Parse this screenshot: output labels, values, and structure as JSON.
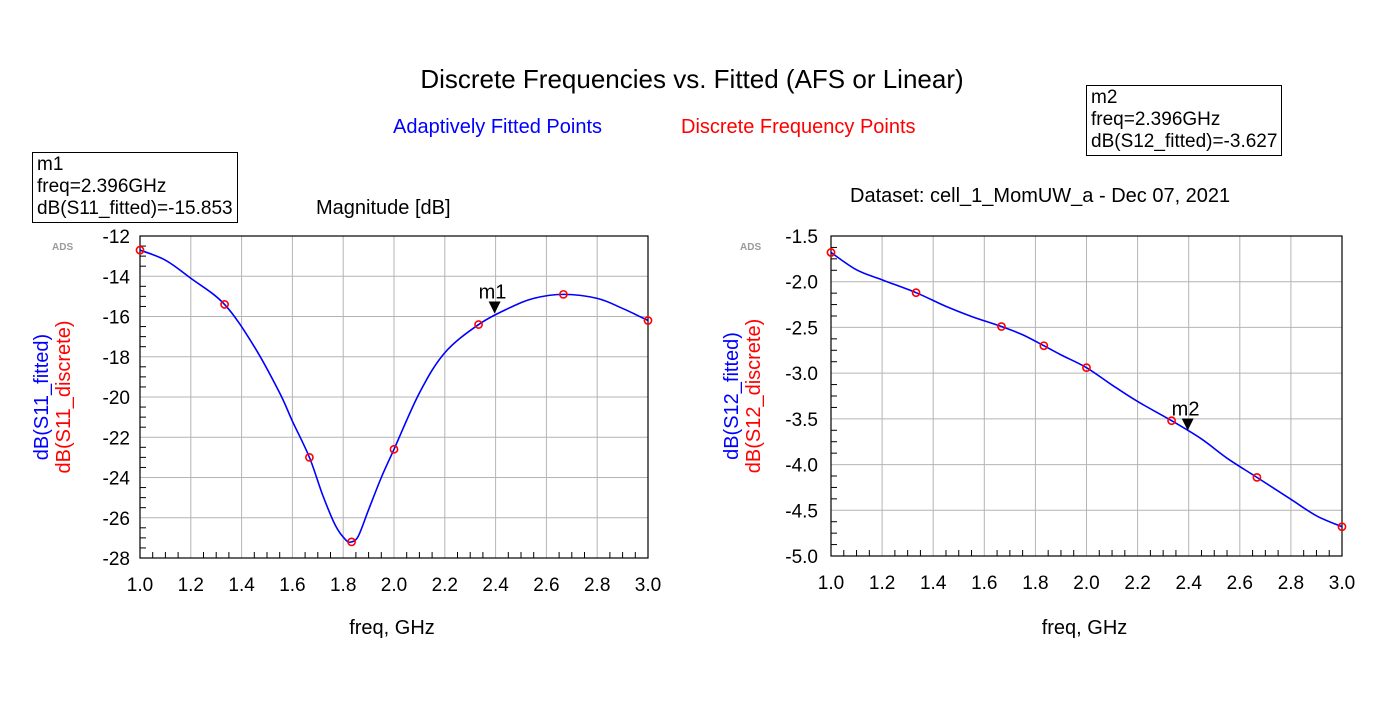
{
  "title": "Discrete Frequencies vs. Fitted (AFS or Linear)",
  "legend": [
    {
      "label": "Adaptively Fitted Points",
      "color": "#0000ff"
    },
    {
      "label": "Discrete Frequency Points",
      "color": "#ff0000"
    }
  ],
  "colors": {
    "fitted": "#0000ff",
    "discrete": "#ff0000",
    "grid": "#b4b4b4"
  },
  "chart_data": [
    {
      "type": "line",
      "title": "Magnitude [dB]",
      "watermark": "ADS",
      "xlabel": "freq, GHz",
      "ylabel_fitted": "dB(S11_fitted)",
      "ylabel_discrete": "dB(S11_discrete)",
      "xlim": [
        1.0,
        3.0
      ],
      "ylim": [
        -28,
        -12
      ],
      "xticks": [
        1.0,
        1.2,
        1.4,
        1.6,
        1.8,
        2.0,
        2.2,
        2.4,
        2.6,
        2.8,
        3.0
      ],
      "xtick_labels": [
        "1.0",
        "1.2",
        "1.4",
        "1.6",
        "1.8",
        "2.0",
        "2.2",
        "2.4",
        "2.6",
        "2.8",
        "3.0"
      ],
      "yticks": [
        -12,
        -14,
        -16,
        -18,
        -20,
        -22,
        -24,
        -26,
        -28
      ],
      "ytick_labels": [
        "-12",
        "-14",
        "-16",
        "-18",
        "-20",
        "-22",
        "-24",
        "-26",
        "-28"
      ],
      "series": [
        {
          "name": "dB(S11_fitted)",
          "x": [
            1.0,
            1.1,
            1.2,
            1.333,
            1.45,
            1.55,
            1.6,
            1.667,
            1.72,
            1.77,
            1.81,
            1.833,
            1.86,
            1.9,
            1.95,
            2.0,
            2.1,
            2.2,
            2.333,
            2.45,
            2.55,
            2.667,
            2.8,
            2.9,
            3.0
          ],
          "y": [
            -12.7,
            -13.2,
            -14.1,
            -15.4,
            -17.5,
            -19.8,
            -21.2,
            -23.0,
            -24.9,
            -26.4,
            -27.1,
            -27.2,
            -26.9,
            -25.6,
            -24.0,
            -22.6,
            -19.8,
            -17.8,
            -16.4,
            -15.6,
            -15.1,
            -14.9,
            -15.1,
            -15.6,
            -16.2
          ]
        },
        {
          "name": "dB(S11_discrete)",
          "x": [
            1.0,
            1.333,
            1.667,
            1.833,
            2.0,
            2.333,
            2.667,
            3.0
          ],
          "y": [
            -12.7,
            -15.4,
            -23.0,
            -27.2,
            -22.6,
            -16.4,
            -14.9,
            -16.2
          ]
        }
      ],
      "marker": {
        "name": "m1",
        "freq": 2.396,
        "value": -15.853,
        "lines": [
          "m1",
          "freq=2.396GHz",
          "dB(S11_fitted)=-15.853"
        ]
      }
    },
    {
      "type": "line",
      "title": "Dataset: cell_1_MomUW_a - Dec 07, 2021",
      "watermark": "ADS",
      "xlabel": "freq, GHz",
      "ylabel_fitted": "dB(S12_fitted)",
      "ylabel_discrete": "dB(S12_discrete)",
      "xlim": [
        1.0,
        3.0
      ],
      "ylim": [
        -5.0,
        -1.5
      ],
      "xticks": [
        1.0,
        1.2,
        1.4,
        1.6,
        1.8,
        2.0,
        2.2,
        2.4,
        2.6,
        2.8,
        3.0
      ],
      "xtick_labels": [
        "1.0",
        "1.2",
        "1.4",
        "1.6",
        "1.8",
        "2.0",
        "2.2",
        "2.4",
        "2.6",
        "2.8",
        "3.0"
      ],
      "yticks": [
        -1.5,
        -2.0,
        -2.5,
        -3.0,
        -3.5,
        -4.0,
        -4.5,
        -5.0
      ],
      "ytick_labels": [
        "-1.5",
        "-2.0",
        "-2.5",
        "-3.0",
        "-3.5",
        "-4.0",
        "-4.5",
        "-5.0"
      ],
      "series": [
        {
          "name": "dB(S12_fitted)",
          "x": [
            1.0,
            1.1,
            1.2,
            1.333,
            1.45,
            1.55,
            1.667,
            1.75,
            1.833,
            1.9,
            2.0,
            2.1,
            2.2,
            2.333,
            2.45,
            2.55,
            2.667,
            2.8,
            2.9,
            3.0
          ],
          "y": [
            -1.68,
            -1.87,
            -1.98,
            -2.12,
            -2.27,
            -2.38,
            -2.49,
            -2.58,
            -2.7,
            -2.8,
            -2.94,
            -3.13,
            -3.31,
            -3.52,
            -3.72,
            -3.93,
            -4.14,
            -4.38,
            -4.56,
            -4.68
          ]
        },
        {
          "name": "dB(S12_discrete)",
          "x": [
            1.0,
            1.333,
            1.667,
            1.833,
            2.0,
            2.333,
            2.667,
            3.0
          ],
          "y": [
            -1.68,
            -2.12,
            -2.49,
            -2.7,
            -2.94,
            -3.52,
            -4.14,
            -4.68
          ]
        }
      ],
      "marker": {
        "name": "m2",
        "freq": 2.396,
        "value": -3.627,
        "lines": [
          "m2",
          "freq=2.396GHz",
          "dB(S12_fitted)=-3.627"
        ]
      }
    }
  ]
}
